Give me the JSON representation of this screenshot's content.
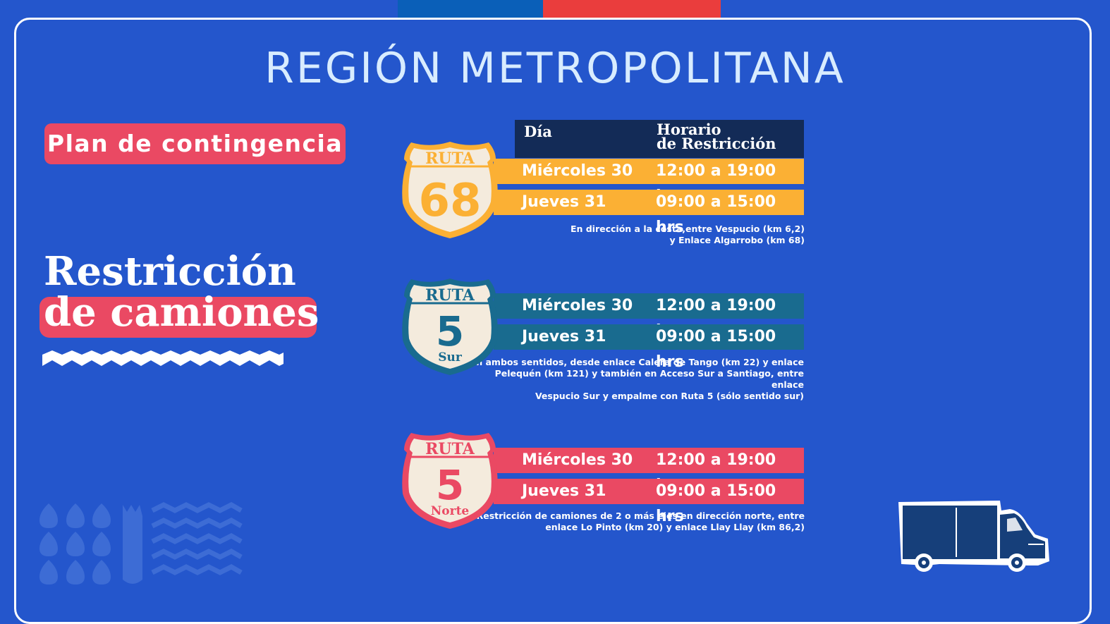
{
  "page": {
    "title": "REGIÓN METROPOLITANA",
    "plan_label": "Plan de contingencia",
    "headline_line1": "Restricción",
    "headline_line2": "de camiones"
  },
  "colors": {
    "background": "#2456cc",
    "flag_blue": "#0a5fb8",
    "flag_red": "#ea3d3d",
    "pink": "#ea4963",
    "yellow": "#fbb034",
    "teal": "#196b8f",
    "navy": "#132b57",
    "cream": "#f4ebdd"
  },
  "table_header": {
    "day_label": "Día",
    "schedule_line1": "Horario",
    "schedule_line2": "de Restricción"
  },
  "routes": [
    {
      "shield_top": "RUTA",
      "shield_number": "68",
      "shield_sub": "",
      "rows": [
        {
          "day": "Miércoles 30",
          "time": "12:00 a 19:00 hrs"
        },
        {
          "day": "Jueves 31",
          "time": "09:00 a 15:00 hrs"
        }
      ],
      "note_lines": [
        "En dirección a la costa,entre Vespucio (km 6,2)",
        "y Enlace Algarrobo (km 68)"
      ]
    },
    {
      "shield_top": "RUTA",
      "shield_number": "5",
      "shield_sub": "Sur",
      "rows": [
        {
          "day": "Miércoles 30",
          "time": "12:00 a 19:00 hrs"
        },
        {
          "day": "Jueves 31",
          "time": "09:00 a 15:00 hrs"
        }
      ],
      "note_lines": [
        "En ambos sentidos, desde enlace Calera de Tango (km 22) y enlace",
        "Pelequén (km 121) y también en Acceso Sur a Santiago, entre enlace",
        "Vespucio Sur y empalme con Ruta 5 (sólo sentido sur)"
      ]
    },
    {
      "shield_top": "RUTA",
      "shield_number": "5",
      "shield_sub": "Norte",
      "rows": [
        {
          "day": "Miércoles 30",
          "time": "12:00 a 19:00 hrs"
        },
        {
          "day": "Jueves 31",
          "time": "09:00 a 15:00 hrs"
        }
      ],
      "note_lines": [
        "Restricción de camiones de 2 o más ejes en dirección norte, entre",
        "enlace Lo Pinto (km 20) y enlace Llay Llay (km 86,2)"
      ]
    }
  ],
  "icons": {
    "truck": "truck-icon",
    "zigzag": "zigzag-divider-icon",
    "pattern": "decorative-pattern-icon"
  }
}
